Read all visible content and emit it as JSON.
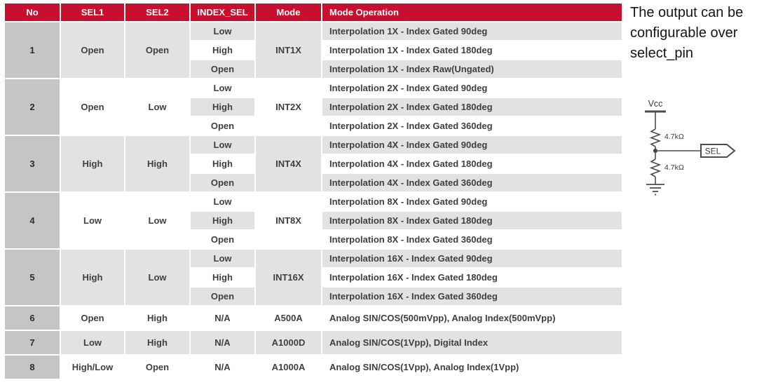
{
  "table": {
    "headers": [
      "No",
      "SEL1",
      "SEL2",
      "INDEX_SEL",
      "Mode",
      "Mode Operation"
    ],
    "groups": [
      {
        "no": "1",
        "sel1": "Open",
        "sel2": "Open",
        "mode": "INT1X",
        "rows": [
          {
            "index_sel": "Low",
            "operation": "Interpolation 1X - Index Gated 90deg"
          },
          {
            "index_sel": "High",
            "operation": "Interpolation 1X - Index Gated 180deg"
          },
          {
            "index_sel": "Open",
            "operation": "Interpolation 1X - Index Raw(Ungated)"
          }
        ]
      },
      {
        "no": "2",
        "sel1": "Open",
        "sel2": "Low",
        "mode": "INT2X",
        "rows": [
          {
            "index_sel": "Low",
            "operation": "Interpolation 2X - Index Gated 90deg"
          },
          {
            "index_sel": "High",
            "operation": "Interpolation 2X - Index Gated 180deg"
          },
          {
            "index_sel": "Open",
            "operation": "Interpolation 2X - Index Gated 360deg"
          }
        ]
      },
      {
        "no": "3",
        "sel1": "High",
        "sel2": "High",
        "mode": "INT4X",
        "rows": [
          {
            "index_sel": "Low",
            "operation": "Interpolation 4X - Index Gated 90deg"
          },
          {
            "index_sel": "High",
            "operation": "Interpolation 4X - Index Gated 180deg"
          },
          {
            "index_sel": "Open",
            "operation": "Interpolation 4X - Index Gated 360deg"
          }
        ]
      },
      {
        "no": "4",
        "sel1": "Low",
        "sel2": "Low",
        "mode": "INT8X",
        "rows": [
          {
            "index_sel": "Low",
            "operation": "Interpolation 8X - Index Gated 90deg"
          },
          {
            "index_sel": "High",
            "operation": "Interpolation 8X - Index Gated 180deg"
          },
          {
            "index_sel": "Open",
            "operation": "Interpolation 8X - Index Gated 360deg"
          }
        ]
      },
      {
        "no": "5",
        "sel1": "High",
        "sel2": "Low",
        "mode": "INT16X",
        "rows": [
          {
            "index_sel": "Low",
            "operation": "Interpolation 16X - Index Gated 90deg"
          },
          {
            "index_sel": "High",
            "operation": "Interpolation 16X - Index Gated 180deg"
          },
          {
            "index_sel": "Open",
            "operation": "Interpolation 16X - Index Gated 360deg"
          }
        ]
      },
      {
        "no": "6",
        "sel1": "Open",
        "sel2": "High",
        "mode": "A500A",
        "rows": [
          {
            "index_sel": "N/A",
            "operation": "Analog SIN/COS(500mVpp), Analog Index(500mVpp)"
          }
        ]
      },
      {
        "no": "7",
        "sel1": "Low",
        "sel2": "High",
        "mode": "A1000D",
        "rows": [
          {
            "index_sel": "N/A",
            "operation": "Analog SIN/COS(1Vpp), Digital Index"
          }
        ]
      },
      {
        "no": "8",
        "sel1": "High/Low",
        "sel2": "Open",
        "mode": "A1000A",
        "rows": [
          {
            "index_sel": "N/A",
            "operation": "Analog SIN/COS(1Vpp), Analog Index(1Vpp)"
          }
        ]
      }
    ]
  },
  "note": {
    "text": "The output can be configurable over select_pin"
  },
  "circuit": {
    "vcc_label": "Vcc",
    "resistor_top_label": "4.7kΩ",
    "resistor_bottom_label": "4.7kΩ",
    "sel_label": "SEL"
  },
  "colors": {
    "header_red": "#C8102E",
    "row_gray": "#E2E2E3",
    "row_white": "#FFFFFF",
    "no_col_gray": "#C5C5C6",
    "text_dark": "#3F3F3F",
    "circuit_stroke": "#4D4D4D"
  }
}
